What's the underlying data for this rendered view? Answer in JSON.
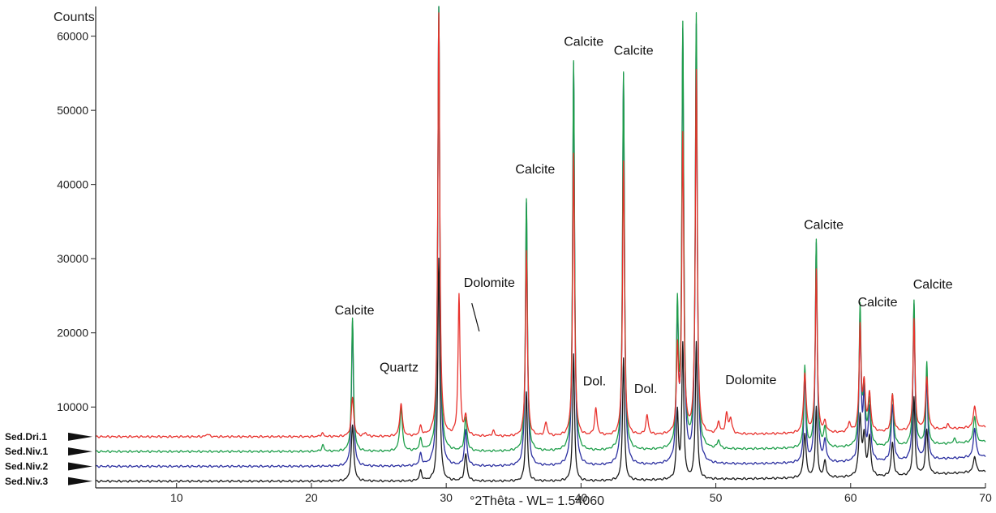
{
  "chart_data": {
    "type": "line",
    "xlabel": "°2Thêta - WL= 1.54060",
    "ylabel": "Counts",
    "xlim": [
      4,
      70
    ],
    "ylim": [
      0,
      64000
    ],
    "x_ticks": [
      "10",
      "20",
      "30",
      "40",
      "50",
      "60",
      "70"
    ],
    "y_ticks": [
      "10000",
      "20000",
      "30000",
      "40000",
      "50000",
      "60000"
    ],
    "grid": false,
    "series": [
      {
        "name": "Sed.Dri.1",
        "color": "#e8322d",
        "baseline": 6000,
        "peaks": [
          [
            12.3,
            400
          ],
          [
            20.8,
            450
          ],
          [
            23.05,
            5200
          ],
          [
            24.0,
            500
          ],
          [
            26.65,
            4500
          ],
          [
            28.1,
            1200
          ],
          [
            29.45,
            57000
          ],
          [
            30.95,
            19000
          ],
          [
            31.45,
            2500
          ],
          [
            33.5,
            700
          ],
          [
            35.95,
            25000
          ],
          [
            37.4,
            1800
          ],
          [
            39.45,
            38000
          ],
          [
            41.1,
            3600
          ],
          [
            43.15,
            37000
          ],
          [
            44.9,
            2600
          ],
          [
            47.15,
            11000
          ],
          [
            47.55,
            40000
          ],
          [
            48.55,
            49000
          ],
          [
            50.2,
            1600
          ],
          [
            50.8,
            2600
          ],
          [
            51.1,
            2000
          ],
          [
            56.6,
            8000
          ],
          [
            57.45,
            22000
          ],
          [
            58.1,
            1400
          ],
          [
            59.9,
            1300
          ],
          [
            60.7,
            14000
          ],
          [
            61.0,
            6000
          ],
          [
            61.4,
            5000
          ],
          [
            63.1,
            5000
          ],
          [
            64.7,
            15000
          ],
          [
            65.65,
            7000
          ],
          [
            67.2,
            600
          ],
          [
            69.2,
            3000
          ]
        ]
      },
      {
        "name": "Sed.Niv.1",
        "color": "#1e9e4a",
        "baseline": 4000,
        "peaks": [
          [
            20.85,
            800
          ],
          [
            23.05,
            17900
          ],
          [
            26.65,
            5900
          ],
          [
            28.1,
            1500
          ],
          [
            29.45,
            60000
          ],
          [
            31.45,
            4500
          ],
          [
            35.95,
            34000
          ],
          [
            39.45,
            52500
          ],
          [
            43.15,
            51000
          ],
          [
            47.15,
            18500
          ],
          [
            47.55,
            56500
          ],
          [
            48.55,
            58500
          ],
          [
            50.2,
            1100
          ],
          [
            56.6,
            11000
          ],
          [
            57.45,
            28000
          ],
          [
            58.1,
            2500
          ],
          [
            60.7,
            18500
          ],
          [
            61.0,
            7500
          ],
          [
            61.4,
            6000
          ],
          [
            63.1,
            7000
          ],
          [
            64.7,
            19500
          ],
          [
            65.65,
            11000
          ],
          [
            67.7,
            600
          ],
          [
            69.2,
            3600
          ]
        ]
      },
      {
        "name": "Sed.Niv.2",
        "color": "#2b2fa0",
        "baseline": 2000,
        "peaks": [
          [
            23.05,
            19500
          ],
          [
            28.1,
            1500
          ],
          [
            29.45,
            62000
          ],
          [
            31.45,
            4800
          ],
          [
            35.95,
            35500
          ],
          [
            39.45,
            54200
          ],
          [
            43.15,
            52800
          ],
          [
            47.15,
            19500
          ],
          [
            47.55,
            57500
          ],
          [
            48.55,
            59000
          ],
          [
            56.6,
            12000
          ],
          [
            57.45,
            29500
          ],
          [
            58.1,
            2800
          ],
          [
            60.7,
            19800
          ],
          [
            61.0,
            8500
          ],
          [
            61.4,
            7000
          ],
          [
            63.1,
            7500
          ],
          [
            64.7,
            21000
          ],
          [
            65.65,
            11000
          ],
          [
            69.2,
            4000
          ]
        ]
      },
      {
        "name": "Sed.Niv.3",
        "color": "#1b1b1b",
        "baseline": 0,
        "peaks": [
          [
            23.05,
            7500
          ],
          [
            28.1,
            1300
          ],
          [
            29.45,
            30000
          ],
          [
            31.45,
            3600
          ],
          [
            35.95,
            12000
          ],
          [
            39.45,
            17000
          ],
          [
            43.15,
            16500
          ],
          [
            47.15,
            9000
          ],
          [
            47.55,
            18000
          ],
          [
            48.55,
            18500
          ],
          [
            56.6,
            6000
          ],
          [
            57.45,
            9500
          ],
          [
            58.1,
            2200
          ],
          [
            60.7,
            8000
          ],
          [
            61.0,
            5000
          ],
          [
            61.4,
            5200
          ],
          [
            63.1,
            4500
          ],
          [
            64.7,
            10500
          ],
          [
            65.65,
            6000
          ],
          [
            69.2,
            2200
          ]
        ]
      }
    ],
    "annotations": [
      {
        "text": "Calcite",
        "x": 23.2,
        "y": 22500
      },
      {
        "text": "Quartz",
        "x": 26.5,
        "y": 14800
      },
      {
        "text": "Calcite",
        "x": 27.2,
        "y": 65400
      },
      {
        "text": "Dolomite",
        "x": 33.2,
        "y": 26200
      },
      {
        "text": "Calcite",
        "x": 36.6,
        "y": 41500
      },
      {
        "text": "Calcite",
        "x": 40.2,
        "y": 58700
      },
      {
        "text": "Calcite",
        "x": 43.9,
        "y": 57500
      },
      {
        "text": "Dol.",
        "x": 41.0,
        "y": 12900
      },
      {
        "text": "Dol.",
        "x": 44.8,
        "y": 11900
      },
      {
        "text": "Calcite",
        "x": 47.7,
        "y": 66700
      },
      {
        "text": "Dolomite",
        "x": 52.6,
        "y": 13100
      },
      {
        "text": "Calcite",
        "x": 58.0,
        "y": 34000
      },
      {
        "text": "Calcite",
        "x": 62.0,
        "y": 23600
      },
      {
        "text": "Calcite",
        "x": 66.1,
        "y": 26000
      }
    ],
    "leader_line": {
      "from": [
        32.45,
        20200
      ],
      "to": [
        31.9,
        24000
      ]
    }
  }
}
